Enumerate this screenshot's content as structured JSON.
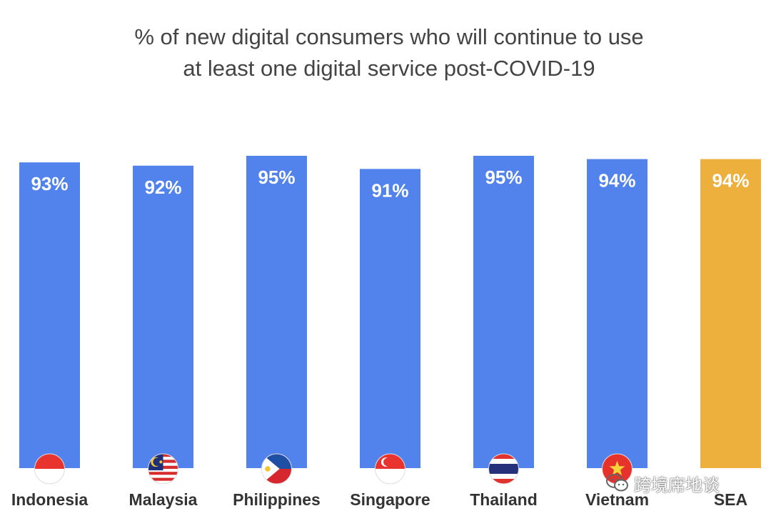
{
  "chart_data": {
    "type": "bar",
    "title_lines": [
      "% of new digital consumers who will continue to use",
      "at least one digital service post-COVID-19"
    ],
    "categories": [
      "Indonesia",
      "Malaysia",
      "Philippines",
      "Singapore",
      "Thailand",
      "Vietnam",
      "SEA"
    ],
    "values": [
      93,
      92,
      95,
      91,
      95,
      94,
      94
    ],
    "data_labels": [
      "93%",
      "92%",
      "95%",
      "91%",
      "95%",
      "94%",
      "94%"
    ],
    "colors": [
      "#5283EC",
      "#5283EC",
      "#5283EC",
      "#5283EC",
      "#5283EC",
      "#5283EC",
      "#EDB03C"
    ],
    "ylim": [
      0,
      100
    ],
    "grid": false,
    "flags": [
      "flag-indonesia-icon",
      "flag-malaysia-icon",
      "flag-philippines-icon",
      "flag-singapore-icon",
      "flag-thailand-icon",
      "flag-vietnam-icon",
      null
    ]
  },
  "watermark": {
    "text": "跨境席地谈",
    "icon": "wechat-icon"
  }
}
